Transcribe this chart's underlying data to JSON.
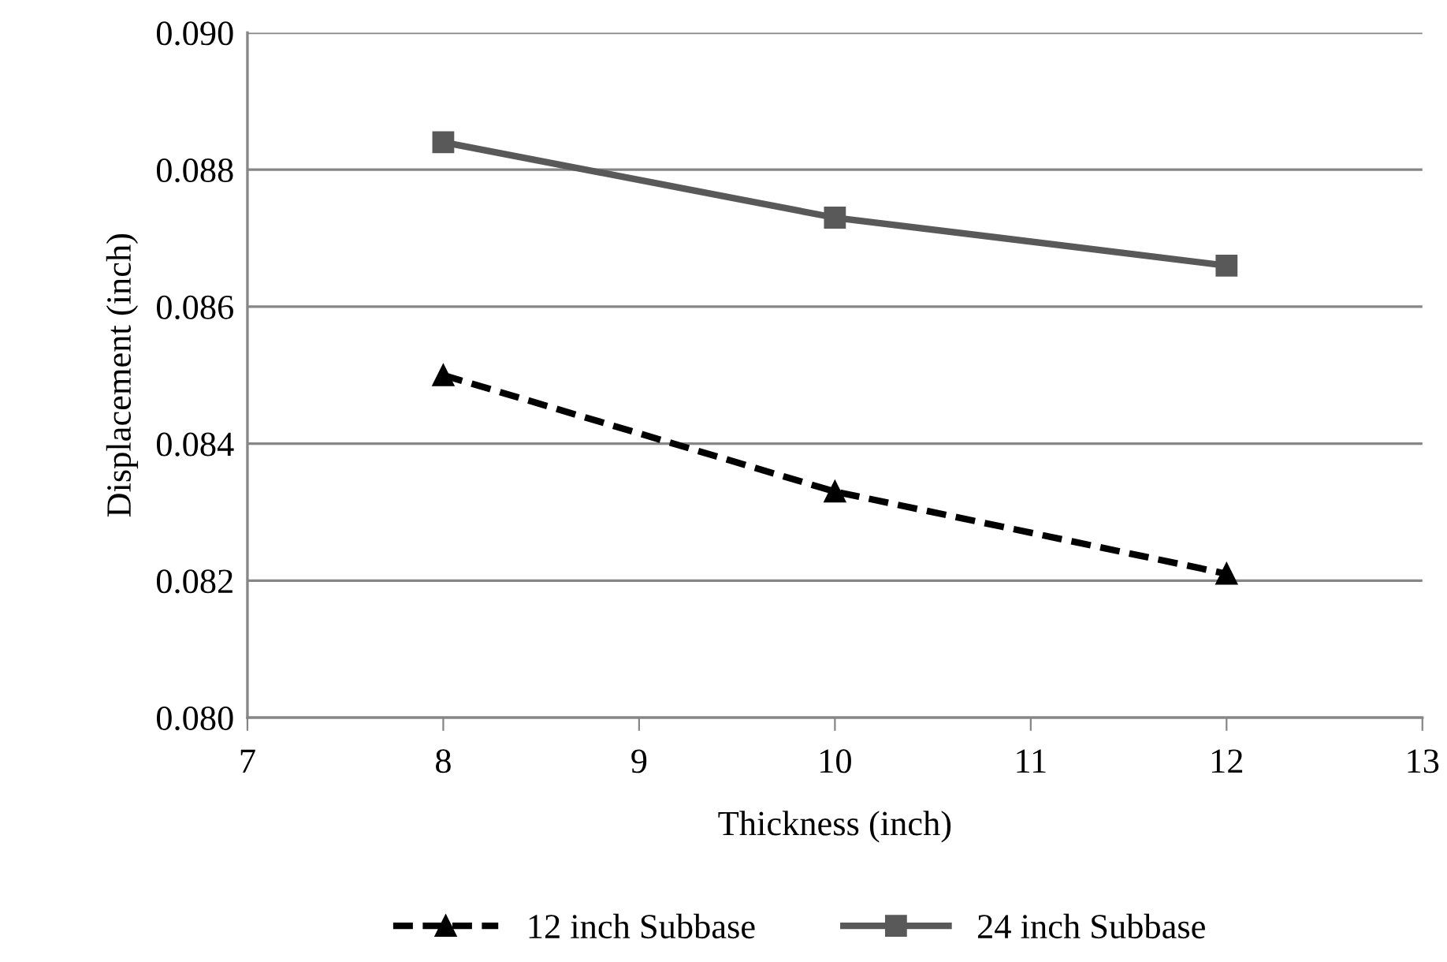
{
  "chart_data": {
    "type": "line",
    "xlabel": "Thickness (inch)",
    "ylabel": "Displacement (inch)",
    "x": [
      8,
      10,
      12
    ],
    "series": [
      {
        "name": "12 inch Subbase",
        "color": "#000000",
        "values": [
          0.085,
          0.0833,
          0.0821
        ],
        "marker": "triangle",
        "line_style": "dashed"
      },
      {
        "name": "24 inch Subbase",
        "color": "#595959",
        "values": [
          0.0884,
          0.0873,
          0.0866
        ],
        "marker": "square",
        "line_style": "solid"
      }
    ],
    "xlim": [
      7,
      13
    ],
    "xticks": [
      7,
      8,
      9,
      10,
      11,
      12,
      13
    ],
    "ylim": [
      0.08,
      0.09
    ],
    "yticks": [
      {
        "value": 0.08,
        "label": "0.080"
      },
      {
        "value": 0.082,
        "label": "0.082"
      },
      {
        "value": 0.084,
        "label": "0.084"
      },
      {
        "value": 0.086,
        "label": "0.086"
      },
      {
        "value": 0.088,
        "label": "0.088"
      },
      {
        "value": 0.09,
        "label": "0.090"
      }
    ],
    "grid": "y",
    "legend": "bottom"
  }
}
